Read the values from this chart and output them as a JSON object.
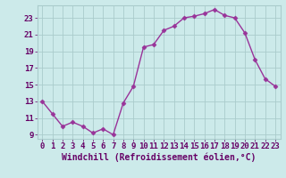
{
  "x": [
    0,
    1,
    2,
    3,
    4,
    5,
    6,
    7,
    8,
    9,
    10,
    11,
    12,
    13,
    14,
    15,
    16,
    17,
    18,
    19,
    20,
    21,
    22,
    23
  ],
  "y": [
    13,
    11.5,
    10,
    10.5,
    10,
    9.2,
    9.7,
    9,
    12.8,
    14.8,
    19.5,
    19.8,
    21.5,
    22,
    23,
    23.2,
    23.5,
    24,
    23.3,
    23,
    21.2,
    18,
    15.7,
    14.8
  ],
  "line_color": "#993399",
  "marker": "D",
  "marker_size": 2.5,
  "bg_color": "#cceaea",
  "grid_color": "#aacccc",
  "xlabel": "Windchill (Refroidissement éolien,°C)",
  "xlabel_fontsize": 7,
  "xtick_labels": [
    "0",
    "1",
    "2",
    "3",
    "4",
    "5",
    "6",
    "7",
    "8",
    "9",
    "10",
    "11",
    "12",
    "13",
    "14",
    "15",
    "16",
    "17",
    "18",
    "19",
    "20",
    "21",
    "22",
    "23"
  ],
  "ytick_values": [
    9,
    11,
    13,
    15,
    17,
    19,
    21,
    23
  ],
  "ylim": [
    8.5,
    24.5
  ],
  "xlim": [
    -0.5,
    23.5
  ],
  "tick_fontsize": 6.5,
  "line_width": 1.0,
  "text_color": "#660066"
}
